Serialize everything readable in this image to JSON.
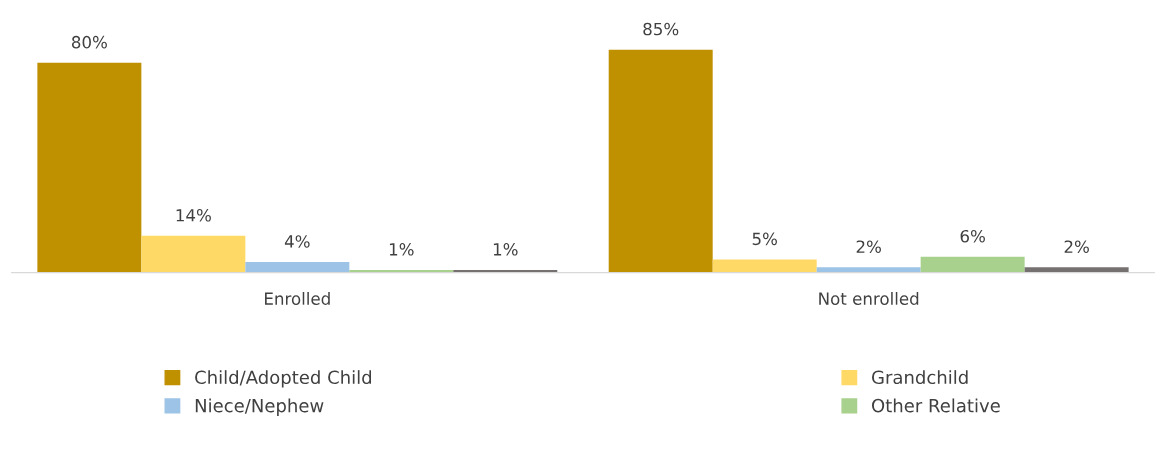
{
  "chart_data": {
    "type": "bar",
    "categories": [
      "Enrolled",
      "Not enrolled"
    ],
    "series": [
      {
        "name": "Child/Adopted Child",
        "color": "#bf9000",
        "values": [
          80,
          85
        ],
        "value_labels": [
          "80%",
          "85%"
        ]
      },
      {
        "name": "Grandchild",
        "color": "#ffd966",
        "values": [
          14,
          5
        ],
        "value_labels": [
          "14%",
          "5%"
        ]
      },
      {
        "name": "Niece/Nephew",
        "color": "#9dc3e6",
        "values": [
          4,
          2
        ],
        "value_labels": [
          "4%",
          "2%"
        ]
      },
      {
        "name": "Other Relative",
        "color": "#a9d18e",
        "values": [
          1,
          6
        ],
        "value_labels": [
          "1%",
          "6%"
        ]
      },
      {
        "color": "#767171",
        "values": [
          1,
          2
        ],
        "value_labels": [
          "1%",
          "2%"
        ]
      }
    ],
    "legend": "bottom",
    "grid": false
  }
}
